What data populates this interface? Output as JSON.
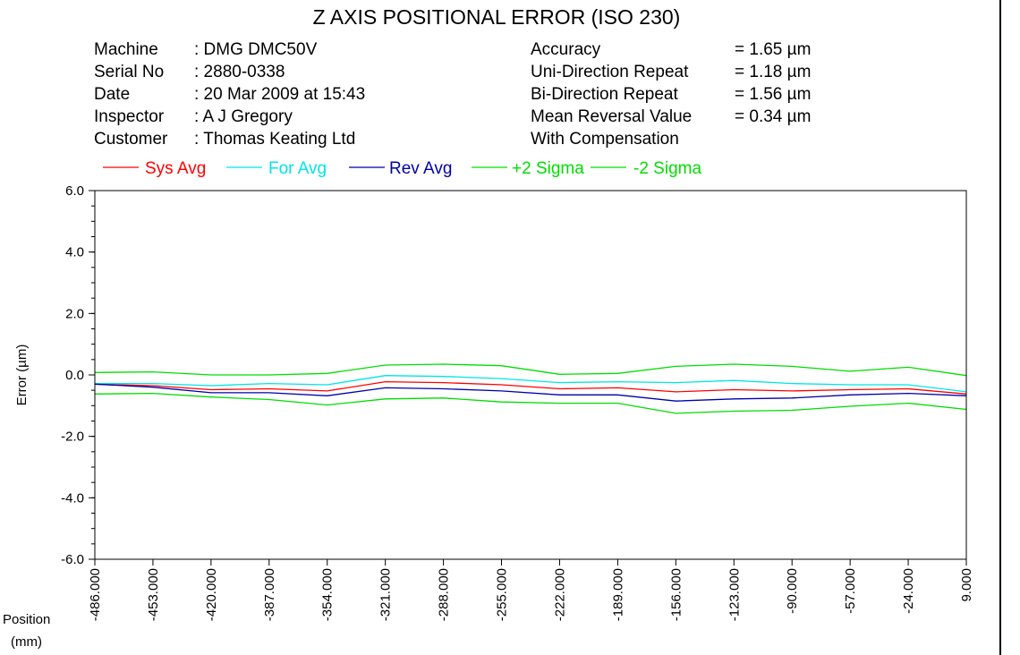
{
  "header": {
    "title": "Z AXIS POSITIONAL ERROR (ISO 230)",
    "left_info": [
      {
        "label": "Machine",
        "value": ": DMG DMC50V"
      },
      {
        "label": "Serial No",
        "value": ": 2880-0338"
      },
      {
        "label": "Date",
        "value": ": 20 Mar 2009 at 15:43"
      },
      {
        "label": "Inspector",
        "value": ": A J Gregory"
      },
      {
        "label": "Customer",
        "value": ": Thomas Keating Ltd"
      }
    ],
    "right_info": [
      {
        "label": "Accuracy",
        "value": "= 1.65 µm"
      },
      {
        "label": "Uni-Direction Repeat",
        "value": "= 1.18 µm"
      },
      {
        "label": "Bi-Direction Repeat",
        "value": "= 1.56 µm"
      },
      {
        "label": "Mean Reversal Value",
        "value": "= 0.34 µm"
      },
      {
        "label": "With Compensation",
        "value": ""
      }
    ]
  },
  "chart_data": {
    "type": "line",
    "title": "Z AXIS POSITIONAL ERROR (ISO 230)",
    "ylabel": "Error (µm)",
    "xlabel_lines": [
      "Position",
      "(mm)"
    ],
    "x": [
      -486,
      -453,
      -420,
      -387,
      -354,
      -321,
      -288,
      -255,
      -222,
      -189,
      -156,
      -123,
      -90,
      -57,
      -24,
      9
    ],
    "x_tick_labels": [
      "-486.000",
      "-453.000",
      "-420.000",
      "-387.000",
      "-354.000",
      "-321.000",
      "-288.000",
      "-255.000",
      "-222.000",
      "-189.000",
      "-156.000",
      "-123.000",
      "-90.000",
      "-57.000",
      "-24.000",
      "9.000"
    ],
    "ylim": [
      -6.0,
      6.0
    ],
    "y_ticks": [
      6.0,
      4.0,
      2.0,
      0.0,
      -2.0,
      -4.0,
      -6.0
    ],
    "y_tick_labels": [
      "6.0",
      "4.0",
      "2.0",
      "0.0",
      "-2.0",
      "-4.0",
      "-6.0"
    ],
    "grid": false,
    "legend_position": "top",
    "series": [
      {
        "name": "Sys Avg",
        "color": "#ff0000",
        "values": [
          -0.3,
          -0.35,
          -0.48,
          -0.45,
          -0.52,
          -0.22,
          -0.25,
          -0.32,
          -0.45,
          -0.42,
          -0.55,
          -0.48,
          -0.52,
          -0.48,
          -0.45,
          -0.62
        ]
      },
      {
        "name": "For Avg",
        "color": "#00e5e5",
        "values": [
          -0.28,
          -0.28,
          -0.35,
          -0.28,
          -0.32,
          -0.02,
          -0.05,
          -0.12,
          -0.25,
          -0.22,
          -0.25,
          -0.18,
          -0.28,
          -0.32,
          -0.32,
          -0.55
        ]
      },
      {
        "name": "Rev Avg",
        "color": "#0000aa",
        "values": [
          -0.3,
          -0.4,
          -0.58,
          -0.58,
          -0.68,
          -0.42,
          -0.45,
          -0.52,
          -0.65,
          -0.65,
          -0.85,
          -0.78,
          -0.75,
          -0.65,
          -0.6,
          -0.68
        ]
      },
      {
        "name": "+2 Sigma",
        "color": "#00dd00",
        "values": [
          0.08,
          0.1,
          0.0,
          0.0,
          0.05,
          0.32,
          0.35,
          0.3,
          0.02,
          0.05,
          0.28,
          0.35,
          0.28,
          0.12,
          0.25,
          -0.02
        ]
      },
      {
        "name": "-2 Sigma",
        "color": "#00dd00",
        "values": [
          -0.62,
          -0.6,
          -0.72,
          -0.8,
          -0.98,
          -0.78,
          -0.75,
          -0.88,
          -0.92,
          -0.92,
          -1.25,
          -1.18,
          -1.15,
          -1.02,
          -0.92,
          -1.12
        ]
      }
    ]
  }
}
